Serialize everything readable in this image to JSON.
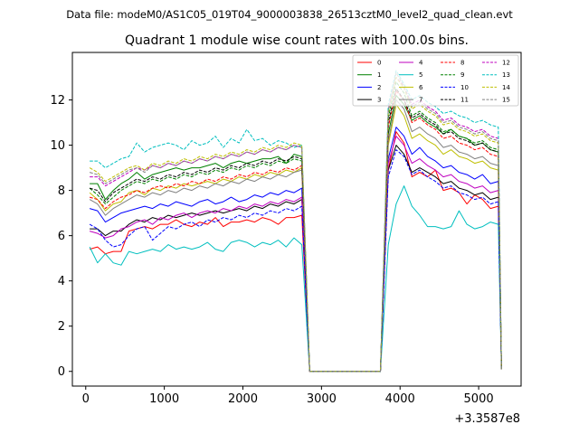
{
  "chart_data": {
    "type": "line",
    "suptitle": "Data file: modeM0/AS1C05_019T04_9000003838_26513cztM0_level2_quad_clean.evt",
    "title": "Quadrant 1 module wise count rates with 100.0s bins.",
    "xlabel": "",
    "ylabel": "",
    "x_offset_label": "+3.3587e8",
    "xlim": [
      -170,
      5540
    ],
    "ylim": [
      -0.65,
      14.1
    ],
    "xticks": [
      0,
      1000,
      2000,
      3000,
      4000,
      5000
    ],
    "yticks": [
      0,
      2,
      4,
      6,
      8,
      10,
      12
    ],
    "legend_position": "top-right",
    "legend_columns": 4,
    "x": [
      50,
      150,
      250,
      350,
      450,
      550,
      650,
      750,
      850,
      950,
      1050,
      1150,
      1250,
      1350,
      1450,
      1550,
      1650,
      1750,
      1850,
      1950,
      2050,
      2150,
      2250,
      2350,
      2450,
      2550,
      2650,
      2750,
      2850,
      3750,
      3850,
      3950,
      4050,
      4150,
      4250,
      4350,
      4450,
      4550,
      4650,
      4750,
      4850,
      4950,
      5050,
      5150,
      5250,
      5290
    ],
    "series": [
      {
        "name": "0",
        "color": "#ff0000",
        "dash": "solid",
        "values": [
          5.4,
          5.5,
          5.2,
          5.3,
          5.3,
          6.2,
          6.3,
          6.4,
          6.3,
          6.5,
          6.5,
          6.7,
          6.5,
          6.4,
          6.6,
          6.5,
          6.8,
          6.4,
          6.6,
          6.6,
          6.7,
          6.6,
          6.8,
          6.7,
          6.5,
          6.8,
          6.8,
          6.9,
          0,
          0,
          8.9,
          10.6,
          10.1,
          8.6,
          8.8,
          8.6,
          8.9,
          8.0,
          8.1,
          7.9,
          7.4,
          7.8,
          7.6,
          7.2,
          7.3,
          0.1
        ]
      },
      {
        "name": "1",
        "color": "#008000",
        "dash": "solid",
        "values": [
          8.3,
          8.3,
          7.6,
          8.0,
          8.3,
          8.5,
          8.8,
          8.5,
          8.7,
          8.8,
          8.9,
          9.0,
          8.9,
          9.0,
          9.0,
          9.1,
          9.2,
          9.0,
          9.2,
          9.3,
          9.2,
          9.3,
          9.4,
          9.4,
          9.5,
          9.2,
          9.6,
          9.5,
          0,
          0,
          10.5,
          12.2,
          11.8,
          11.1,
          11.3,
          11.0,
          10.8,
          10.5,
          10.7,
          10.4,
          10.3,
          10.0,
          10.1,
          9.8,
          9.7,
          0.1
        ]
      },
      {
        "name": "2",
        "color": "#0000ff",
        "dash": "solid",
        "values": [
          7.2,
          7.1,
          6.6,
          6.8,
          7.0,
          7.1,
          7.2,
          7.3,
          7.2,
          7.4,
          7.3,
          7.5,
          7.4,
          7.3,
          7.5,
          7.6,
          7.4,
          7.5,
          7.7,
          7.5,
          7.6,
          7.8,
          7.7,
          7.9,
          7.8,
          8.0,
          7.9,
          8.1,
          0,
          0,
          9.4,
          10.8,
          10.4,
          9.6,
          9.9,
          9.5,
          9.3,
          9.0,
          9.1,
          8.8,
          8.7,
          8.5,
          8.7,
          8.3,
          8.4,
          0.1
        ]
      },
      {
        "name": "3",
        "color": "#000000",
        "dash": "solid",
        "values": [
          6.3,
          6.3,
          6.0,
          6.2,
          6.2,
          6.5,
          6.7,
          6.6,
          6.8,
          6.7,
          6.9,
          6.8,
          6.9,
          7.0,
          6.9,
          7.0,
          7.1,
          7.0,
          7.1,
          7.2,
          7.1,
          7.3,
          7.2,
          7.4,
          7.3,
          7.5,
          7.4,
          7.6,
          0,
          0,
          8.9,
          10.0,
          9.6,
          8.8,
          9.0,
          8.8,
          8.6,
          8.3,
          8.4,
          8.1,
          8.0,
          7.8,
          7.9,
          7.6,
          7.7,
          0.1
        ]
      },
      {
        "name": "4",
        "color": "#bf00bf",
        "dash": "solid",
        "values": [
          6.2,
          6.1,
          5.9,
          6.0,
          6.3,
          6.4,
          6.6,
          6.7,
          6.5,
          6.8,
          6.7,
          6.9,
          7.0,
          6.8,
          7.0,
          7.1,
          7.0,
          7.2,
          7.1,
          7.3,
          7.2,
          7.4,
          7.3,
          7.5,
          7.4,
          7.6,
          7.5,
          7.7,
          0,
          0,
          9.2,
          10.4,
          10.0,
          9.2,
          9.4,
          9.1,
          8.9,
          8.6,
          8.7,
          8.4,
          8.3,
          8.1,
          8.2,
          7.9,
          8.0,
          0.1
        ]
      },
      {
        "name": "5",
        "color": "#00bfbf",
        "dash": "solid",
        "values": [
          5.5,
          4.8,
          5.2,
          4.8,
          4.7,
          5.3,
          5.2,
          5.3,
          5.4,
          5.3,
          5.6,
          5.4,
          5.5,
          5.4,
          5.5,
          5.7,
          5.4,
          5.3,
          5.7,
          5.8,
          5.7,
          5.5,
          5.7,
          5.6,
          5.8,
          5.5,
          5.9,
          5.6,
          0,
          0,
          5.6,
          7.4,
          8.2,
          7.3,
          6.9,
          6.4,
          6.4,
          6.3,
          6.4,
          7.1,
          6.5,
          6.3,
          6.4,
          6.6,
          6.5,
          0.1
        ]
      },
      {
        "name": "6",
        "color": "#bfbf00",
        "dash": "solid",
        "values": [
          7.9,
          7.6,
          7.1,
          7.4,
          7.5,
          7.9,
          8.0,
          7.8,
          8.1,
          8.0,
          8.2,
          8.1,
          8.3,
          8.2,
          8.3,
          8.4,
          8.3,
          8.5,
          8.4,
          8.6,
          8.5,
          8.7,
          8.6,
          8.8,
          8.7,
          8.9,
          8.8,
          9.0,
          0,
          0,
          10.0,
          11.8,
          11.3,
          10.3,
          10.5,
          10.2,
          10.0,
          9.6,
          9.8,
          9.5,
          9.4,
          9.2,
          9.3,
          9.0,
          8.9,
          0.1
        ]
      },
      {
        "name": "7",
        "color": "#808080",
        "dash": "solid",
        "values": [
          7.6,
          7.4,
          6.9,
          7.2,
          7.4,
          7.6,
          7.8,
          7.7,
          7.9,
          7.8,
          8.0,
          7.9,
          8.1,
          8.0,
          8.2,
          8.1,
          8.3,
          8.2,
          8.4,
          8.3,
          8.5,
          8.4,
          8.6,
          8.5,
          8.7,
          8.6,
          8.8,
          8.9,
          0,
          0,
          10.2,
          12.0,
          11.6,
          10.6,
          10.8,
          10.5,
          10.3,
          9.9,
          10.0,
          9.7,
          9.6,
          9.4,
          9.5,
          9.2,
          9.1,
          0.1
        ]
      },
      {
        "name": "8",
        "color": "#ff0000",
        "dash": "dashed",
        "values": [
          7.7,
          7.6,
          7.2,
          7.5,
          7.7,
          7.8,
          8.0,
          7.9,
          8.1,
          8.2,
          8.1,
          8.3,
          8.2,
          8.4,
          8.3,
          8.5,
          8.4,
          8.6,
          8.5,
          8.7,
          8.6,
          8.8,
          8.7,
          8.9,
          8.8,
          9.0,
          8.9,
          9.1,
          0,
          0,
          10.8,
          12.4,
          12.0,
          11.0,
          11.2,
          10.9,
          10.7,
          10.3,
          10.4,
          10.1,
          10.0,
          9.8,
          9.9,
          9.6,
          9.5,
          0.1
        ]
      },
      {
        "name": "9",
        "color": "#008000",
        "dash": "dashed",
        "values": [
          8.1,
          7.8,
          7.4,
          7.7,
          8.0,
          8.2,
          8.4,
          8.3,
          8.5,
          8.4,
          8.6,
          8.5,
          8.7,
          8.6,
          8.8,
          8.7,
          8.9,
          8.8,
          9.0,
          8.9,
          9.1,
          9.0,
          9.2,
          9.1,
          9.3,
          9.2,
          9.4,
          9.3,
          0,
          0,
          11.2,
          12.8,
          12.3,
          11.3,
          11.5,
          11.2,
          11.0,
          10.6,
          10.7,
          10.4,
          10.3,
          10.1,
          10.2,
          9.9,
          9.8,
          0.1
        ]
      },
      {
        "name": "10",
        "color": "#0000ff",
        "dash": "dashed",
        "values": [
          6.5,
          6.3,
          5.8,
          5.5,
          5.6,
          6.0,
          6.3,
          6.4,
          5.8,
          6.1,
          6.4,
          6.3,
          6.5,
          6.6,
          6.4,
          6.7,
          6.6,
          6.8,
          6.7,
          6.9,
          6.8,
          7.0,
          6.9,
          7.1,
          7.0,
          7.2,
          7.1,
          7.3,
          0,
          0,
          8.6,
          9.8,
          9.5,
          8.7,
          8.9,
          8.6,
          8.4,
          8.1,
          8.2,
          7.9,
          7.8,
          7.6,
          7.7,
          7.4,
          7.5,
          0.1
        ]
      },
      {
        "name": "11",
        "color": "#000000",
        "dash": "dashed",
        "values": [
          8.1,
          8.0,
          7.5,
          7.9,
          8.1,
          8.3,
          8.5,
          8.4,
          8.6,
          8.5,
          8.7,
          8.6,
          8.8,
          8.7,
          8.9,
          8.8,
          9.0,
          8.9,
          9.1,
          9.0,
          9.2,
          9.1,
          9.3,
          9.2,
          9.4,
          9.3,
          9.5,
          9.4,
          0,
          0,
          11.0,
          12.5,
          12.0,
          11.2,
          11.4,
          11.1,
          10.9,
          10.5,
          10.6,
          10.3,
          10.2,
          10.0,
          10.1,
          9.8,
          9.7,
          0.1
        ]
      },
      {
        "name": "12",
        "color": "#bf00bf",
        "dash": "dashed",
        "values": [
          8.6,
          8.6,
          8.2,
          8.4,
          8.6,
          8.8,
          9.0,
          8.9,
          9.1,
          9.0,
          9.2,
          9.1,
          9.3,
          9.2,
          9.4,
          9.3,
          9.5,
          9.4,
          9.6,
          9.5,
          9.7,
          9.6,
          9.8,
          9.7,
          9.9,
          9.8,
          10.0,
          9.9,
          0,
          0,
          11.6,
          13.0,
          12.6,
          11.8,
          12.0,
          11.7,
          11.5,
          11.1,
          11.2,
          10.9,
          10.8,
          10.6,
          10.7,
          10.4,
          10.3,
          0.1
        ]
      },
      {
        "name": "13",
        "color": "#00bfbf",
        "dash": "dashed",
        "values": [
          9.3,
          9.3,
          9.0,
          9.2,
          9.4,
          9.5,
          10.1,
          9.7,
          9.9,
          10.0,
          10.1,
          10.0,
          9.8,
          10.2,
          10.0,
          10.1,
          10.4,
          9.9,
          10.3,
          10.1,
          10.7,
          10.2,
          10.3,
          10.0,
          10.2,
          10.1,
          9.9,
          10.0,
          0,
          0,
          11.8,
          13.3,
          12.7,
          12.0,
          12.2,
          11.9,
          11.7,
          11.4,
          11.5,
          11.3,
          11.2,
          11.0,
          11.1,
          10.9,
          10.8,
          0.1
        ]
      },
      {
        "name": "14",
        "color": "#bfbf00",
        "dash": "dashed",
        "values": [
          9.0,
          8.8,
          8.4,
          8.6,
          8.8,
          9.0,
          9.1,
          8.9,
          9.2,
          9.1,
          9.3,
          9.2,
          9.4,
          9.3,
          9.5,
          9.4,
          9.6,
          9.5,
          9.7,
          9.6,
          9.8,
          9.7,
          9.9,
          9.8,
          10.0,
          9.9,
          10.1,
          10.0,
          0,
          0,
          11.4,
          13.0,
          12.5,
          11.6,
          11.8,
          11.5,
          11.3,
          10.9,
          11.0,
          10.7,
          10.6,
          10.4,
          10.5,
          10.2,
          10.1,
          0.1
        ]
      },
      {
        "name": "15",
        "color": "#808080",
        "dash": "dashed",
        "values": [
          8.8,
          8.7,
          8.3,
          8.5,
          8.7,
          8.9,
          9.0,
          8.8,
          9.1,
          9.0,
          9.2,
          9.1,
          9.3,
          9.2,
          9.4,
          9.3,
          9.5,
          9.4,
          9.6,
          9.5,
          9.7,
          9.6,
          9.8,
          9.7,
          9.9,
          9.8,
          10.0,
          9.9,
          0,
          0,
          11.5,
          13.2,
          12.6,
          11.7,
          11.9,
          11.6,
          11.4,
          11.0,
          11.1,
          10.8,
          10.7,
          10.5,
          10.6,
          10.3,
          10.2,
          0.1
        ]
      }
    ]
  }
}
